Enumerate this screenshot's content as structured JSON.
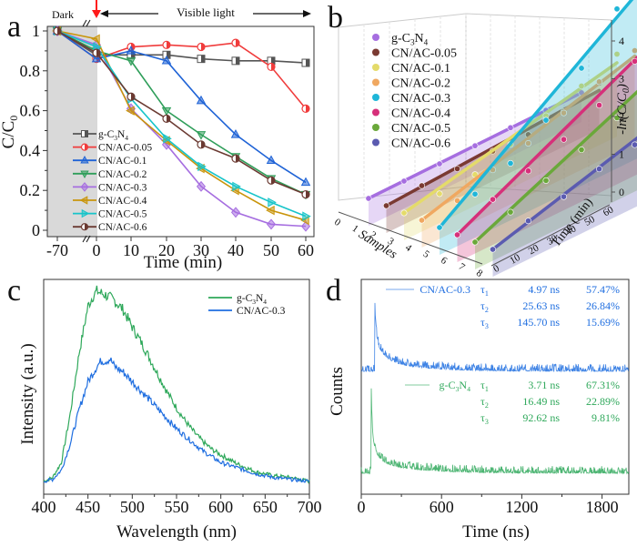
{
  "chart_data": [
    {
      "panel": "a",
      "type": "line",
      "title": "",
      "xlabel": "Time (min)",
      "ylabel": "C/C0",
      "x": [
        -70,
        0,
        10,
        20,
        30,
        40,
        50,
        60
      ],
      "xticks": [
        "-70",
        "0",
        "10",
        "20",
        "30",
        "40",
        "50",
        "60"
      ],
      "yticks": [
        "0",
        "0.2",
        "0.4",
        "0.6",
        "0.8",
        "1"
      ],
      "ylim": [
        0,
        1.05
      ],
      "annotations": {
        "dark": "Dark",
        "light": "Visible light"
      },
      "legend_position": "bottom-left",
      "series": [
        {
          "name": "g-C3N4",
          "color": "#555555",
          "marker": "square",
          "values": [
            1.0,
            0.88,
            0.88,
            0.88,
            0.86,
            0.85,
            0.85,
            0.84
          ]
        },
        {
          "name": "CN/AC-0.05",
          "color": "#f03c3c",
          "marker": "circle",
          "values": [
            1.0,
            0.86,
            0.92,
            0.93,
            0.92,
            0.94,
            0.82,
            0.61
          ]
        },
        {
          "name": "CN/AC-0.1",
          "color": "#1f63d6",
          "marker": "triangle-up",
          "values": [
            1.0,
            0.86,
            0.9,
            0.85,
            0.65,
            0.48,
            0.35,
            0.24
          ]
        },
        {
          "name": "CN/AC-0.2",
          "color": "#2f9e5a",
          "marker": "triangle-down",
          "values": [
            1.0,
            0.9,
            0.85,
            0.6,
            0.48,
            0.37,
            0.26,
            0.18
          ]
        },
        {
          "name": "CN/AC-0.3",
          "color": "#a66ee0",
          "marker": "diamond",
          "values": [
            1.0,
            0.93,
            0.61,
            0.43,
            0.22,
            0.09,
            0.03,
            0.02
          ]
        },
        {
          "name": "CN/AC-0.4",
          "color": "#c9950c",
          "marker": "triangle-left",
          "values": [
            1.0,
            0.96,
            0.6,
            0.45,
            0.31,
            0.2,
            0.1,
            0.05
          ]
        },
        {
          "name": "CN/AC-0.5",
          "color": "#17c4c9",
          "marker": "triangle-right",
          "values": [
            1.0,
            0.92,
            0.66,
            0.46,
            0.32,
            0.22,
            0.14,
            0.07
          ]
        },
        {
          "name": "CN/AC-0.6",
          "color": "#6b3a32",
          "marker": "hexagon",
          "values": [
            1.0,
            0.89,
            0.67,
            0.56,
            0.43,
            0.36,
            0.25,
            0.18
          ]
        }
      ]
    },
    {
      "panel": "b",
      "type": "line",
      "title": "",
      "xlabel": "Samples",
      "ylabel": "Time (min)",
      "zlabel": "-ln(C/C0)",
      "sample_ticks": [
        "0",
        "1",
        "2",
        "3",
        "4",
        "5",
        "6",
        "7",
        "8"
      ],
      "time_ticks": [
        "0",
        "10",
        "20",
        "30",
        "40",
        "50",
        "60"
      ],
      "z_ticks": [
        "0",
        "1",
        "2",
        "3",
        "4"
      ],
      "zlim": [
        0,
        4.3
      ],
      "time": [
        0,
        10,
        20,
        30,
        40,
        50,
        60
      ],
      "legend_position": "top-left",
      "series": [
        {
          "name": "g-C3N4",
          "sample": 1,
          "color": "#a66ee0",
          "values": [
            0.0,
            0.0,
            0.0,
            0.02,
            0.04,
            0.04,
            0.05
          ]
        },
        {
          "name": "CN/AC-0.05",
          "sample": 2,
          "color": "#7a3a32",
          "values": [
            0.0,
            0.07,
            0.06,
            0.07,
            0.05,
            0.2,
            0.49
          ]
        },
        {
          "name": "CN/AC-0.1",
          "sample": 3,
          "color": "#e4db6a",
          "values": [
            0.0,
            0.05,
            0.1,
            0.43,
            0.73,
            1.05,
            1.43
          ]
        },
        {
          "name": "CN/AC-0.2",
          "sample": 4,
          "color": "#f0a860",
          "values": [
            0.0,
            0.06,
            0.41,
            0.65,
            0.99,
            1.35,
            1.71
          ]
        },
        {
          "name": "CN/AC-0.3",
          "sample": 5,
          "color": "#1fb6d8",
          "values": [
            0.0,
            0.42,
            0.77,
            1.44,
            2.34,
            3.43,
            4.29
          ]
        },
        {
          "name": "CN/AC-0.4",
          "sample": 6,
          "color": "#d6307a",
          "values": [
            0.0,
            0.47,
            0.76,
            1.13,
            1.57,
            2.26,
            3.14
          ]
        },
        {
          "name": "CN/AC-0.5",
          "sample": 7,
          "color": "#6aa83a",
          "values": [
            0.0,
            0.33,
            0.7,
            1.05,
            1.43,
            1.88,
            2.8
          ]
        },
        {
          "name": "CN/AC-0.6",
          "sample": 8,
          "color": "#5b5bb0",
          "values": [
            0.0,
            0.29,
            0.47,
            0.74,
            0.92,
            1.28,
            1.71
          ]
        }
      ]
    },
    {
      "panel": "c",
      "type": "line",
      "title": "",
      "xlabel": "Wavelength (nm)",
      "ylabel": "Intensity (a.u.)",
      "xlim": [
        400,
        700
      ],
      "xticks": [
        "400",
        "450",
        "500",
        "550",
        "600",
        "650",
        "700"
      ],
      "ylim": [
        0,
        1.1
      ],
      "legend_position": "top-right",
      "series": [
        {
          "name": "g-C3N4",
          "color": "#2ea85a",
          "x": [
            400,
            410,
            420,
            430,
            440,
            450,
            455,
            460,
            465,
            470,
            480,
            490,
            500,
            510,
            520,
            530,
            540,
            550,
            560,
            570,
            580,
            590,
            600,
            620,
            640,
            660,
            680,
            700
          ],
          "values": [
            0.02,
            0.04,
            0.12,
            0.38,
            0.7,
            0.95,
            1.0,
            1.03,
            1.02,
            1.01,
            0.98,
            0.93,
            0.84,
            0.76,
            0.67,
            0.58,
            0.49,
            0.41,
            0.34,
            0.28,
            0.23,
            0.19,
            0.16,
            0.11,
            0.07,
            0.05,
            0.04,
            0.02
          ]
        },
        {
          "name": "CN/AC-0.3",
          "color": "#1f6ee0",
          "x": [
            400,
            410,
            420,
            430,
            440,
            450,
            460,
            465,
            470,
            475,
            480,
            490,
            500,
            510,
            520,
            530,
            540,
            550,
            560,
            570,
            580,
            590,
            600,
            620,
            640,
            660,
            680,
            700
          ],
          "values": [
            0.02,
            0.03,
            0.08,
            0.22,
            0.4,
            0.55,
            0.63,
            0.66,
            0.66,
            0.67,
            0.63,
            0.6,
            0.55,
            0.5,
            0.45,
            0.4,
            0.35,
            0.3,
            0.26,
            0.22,
            0.18,
            0.15,
            0.12,
            0.09,
            0.06,
            0.04,
            0.03,
            0.02
          ]
        }
      ]
    },
    {
      "panel": "d",
      "type": "line",
      "title": "",
      "xlabel": "Time (ns)",
      "ylabel": "Counts",
      "xlim": [
        0,
        2000
      ],
      "xticks": [
        "0",
        "600",
        "1200",
        "1800"
      ],
      "legend_position": "top",
      "series": [
        {
          "name": "CN/AC-0.3",
          "color": "#1f6ee0",
          "fit": [
            {
              "tau": "τ1",
              "lifetime": "4.97 ns",
              "fraction": "57.47%"
            },
            {
              "tau": "τ2",
              "lifetime": "25.63 ns",
              "fraction": "26.84%"
            },
            {
              "tau": "τ3",
              "lifetime": "145.70 ns",
              "fraction": "15.69%"
            }
          ]
        },
        {
          "name": "g-C3N4",
          "color": "#2ea85a",
          "fit": [
            {
              "tau": "τ1",
              "lifetime": "3.71 ns",
              "fraction": "67.31%"
            },
            {
              "tau": "τ2",
              "lifetime": "16.49 ns",
              "fraction": "22.89%"
            },
            {
              "tau": "τ3",
              "lifetime": "92.62 ns",
              "fraction": "9.81%"
            }
          ]
        }
      ]
    }
  ],
  "labels": {
    "a": "a",
    "b": "b",
    "c": "c",
    "d": "d",
    "a_ylabel": "C/C",
    "a_ylabel_sub": "0",
    "b_zlabel": "-ln(C/C",
    "b_zlabel_sub": "0",
    "b_zlabel_end": ")",
    "b_xlabel": "Samples",
    "b_ylabel": "Time (min)"
  }
}
